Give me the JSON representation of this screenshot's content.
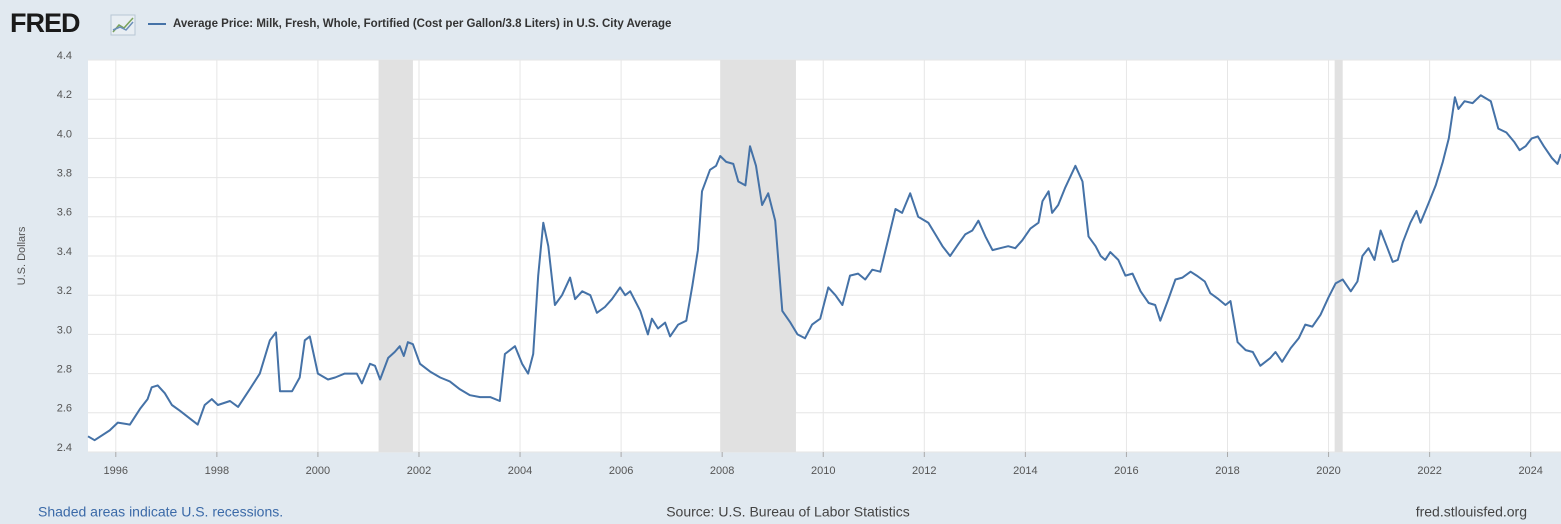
{
  "chart_data": {
    "type": "line",
    "logo": "FRED",
    "ylabel": "U.S. Dollars",
    "recession_note": "Shaded areas indicate U.S. recessions.",
    "source": "Source: U.S. Bureau of Labor Statistics",
    "site": "fred.stlouisfed.org",
    "xlim": [
      1995.45,
      2024.6
    ],
    "xticks": [
      1996,
      1998,
      2000,
      2002,
      2004,
      2006,
      2008,
      2010,
      2012,
      2014,
      2016,
      2018,
      2020,
      2022,
      2024
    ],
    "ylim": [
      2.4,
      4.4
    ],
    "yticks": [
      2.4,
      2.6,
      2.8,
      {
        "value": 3,
        "label": "3.0"
      },
      3.2,
      3.4,
      3.6,
      3.8,
      {
        "value": 4,
        "label": "4.0"
      },
      4.2,
      4.4
    ],
    "grid": true,
    "recessions": [
      [
        2001.2,
        2001.88
      ],
      [
        2007.96,
        2009.46
      ],
      [
        2020.12,
        2020.28
      ]
    ],
    "recession_color": "#e1e1e1",
    "x": [
      1995.45,
      1995.58,
      1995.88,
      1996.04,
      1996.28,
      1996.48,
      1996.63,
      1996.71,
      1996.83,
      1996.97,
      1997.11,
      1997.27,
      1997.47,
      1997.62,
      1997.76,
      1997.9,
      1998.02,
      1998.26,
      1998.42,
      1998.65,
      1998.85,
      1999.05,
      1999.17,
      1999.25,
      1999.49,
      1999.64,
      1999.74,
      1999.84,
      2000.0,
      2000.2,
      2000.34,
      2000.53,
      2000.77,
      2000.87,
      2001.03,
      2001.13,
      2001.23,
      2001.39,
      2001.52,
      2001.62,
      2001.7,
      2001.78,
      2001.88,
      2002.02,
      2002.22,
      2002.42,
      2002.61,
      2002.81,
      2003.01,
      2003.21,
      2003.41,
      2003.6,
      2003.7,
      2003.9,
      2004.04,
      2004.16,
      2004.26,
      2004.36,
      2004.46,
      2004.56,
      2004.69,
      2004.83,
      2004.99,
      2005.09,
      2005.23,
      2005.39,
      2005.52,
      2005.68,
      2005.82,
      2005.98,
      2006.08,
      2006.18,
      2006.38,
      2006.53,
      2006.61,
      2006.73,
      2006.87,
      2006.97,
      2007.13,
      2007.29,
      2007.41,
      2007.52,
      2007.6,
      2007.76,
      2007.88,
      2007.96,
      2008.08,
      2008.22,
      2008.32,
      2008.46,
      2008.55,
      2008.67,
      2008.79,
      2008.91,
      2009.05,
      2009.19,
      2009.35,
      2009.49,
      2009.64,
      2009.78,
      2009.94,
      2010.1,
      2010.24,
      2010.38,
      2010.53,
      2010.69,
      2010.83,
      2010.97,
      2011.13,
      2011.29,
      2011.43,
      2011.56,
      2011.72,
      2011.88,
      2012.08,
      2012.22,
      2012.36,
      2012.51,
      2012.67,
      2012.81,
      2012.95,
      2013.07,
      2013.21,
      2013.35,
      2013.5,
      2013.66,
      2013.8,
      2013.94,
      2014.1,
      2014.26,
      2014.34,
      2014.46,
      2014.53,
      2014.65,
      2014.79,
      2014.99,
      2015.13,
      2015.25,
      2015.39,
      2015.49,
      2015.58,
      2015.68,
      2015.84,
      2015.98,
      2016.12,
      2016.28,
      2016.44,
      2016.57,
      2016.67,
      2016.83,
      2016.97,
      2017.11,
      2017.27,
      2017.39,
      2017.55,
      2017.66,
      2017.82,
      2017.96,
      2018.06,
      2018.2,
      2018.36,
      2018.5,
      2018.65,
      2018.85,
      2018.95,
      2019.08,
      2019.25,
      2019.41,
      2019.54,
      2019.68,
      2019.84,
      2020.0,
      2020.14,
      2020.28,
      2020.44,
      2020.57,
      2020.67,
      2020.79,
      2020.91,
      2021.03,
      2021.15,
      2021.27,
      2021.37,
      2021.47,
      2021.62,
      2021.74,
      2021.82,
      2021.98,
      2022.12,
      2022.26,
      2022.38,
      2022.5,
      2022.57,
      2022.69,
      2022.85,
      2023.01,
      2023.21,
      2023.36,
      2023.52,
      2023.68,
      2023.78,
      2023.9,
      2024.02,
      2024.14,
      2024.26,
      2024.42,
      2024.53,
      2024.6
    ],
    "series": [
      {
        "name": "Average Price: Milk, Fresh, Whole, Fortified (Cost per Gallon/3.8 Liters) in U.S. City Average",
        "color": "#4572a7",
        "values": [
          2.48,
          2.46,
          2.51,
          2.55,
          2.54,
          2.62,
          2.67,
          2.73,
          2.74,
          2.7,
          2.64,
          2.61,
          2.57,
          2.54,
          2.64,
          2.67,
          2.64,
          2.66,
          2.63,
          2.72,
          2.8,
          2.97,
          3.01,
          2.71,
          2.71,
          2.78,
          2.97,
          2.99,
          2.8,
          2.77,
          2.78,
          2.8,
          2.8,
          2.75,
          2.85,
          2.84,
          2.77,
          2.88,
          2.91,
          2.94,
          2.89,
          2.96,
          2.95,
          2.85,
          2.81,
          2.78,
          2.76,
          2.72,
          2.69,
          2.68,
          2.68,
          2.66,
          2.9,
          2.94,
          2.85,
          2.8,
          2.9,
          3.3,
          3.57,
          3.45,
          3.15,
          3.2,
          3.29,
          3.18,
          3.22,
          3.2,
          3.11,
          3.14,
          3.18,
          3.24,
          3.2,
          3.22,
          3.12,
          3.0,
          3.08,
          3.03,
          3.06,
          2.99,
          3.05,
          3.07,
          3.25,
          3.43,
          3.73,
          3.84,
          3.86,
          3.91,
          3.88,
          3.87,
          3.78,
          3.76,
          3.96,
          3.86,
          3.66,
          3.72,
          3.58,
          3.12,
          3.06,
          3.0,
          2.98,
          3.05,
          3.08,
          3.24,
          3.2,
          3.15,
          3.3,
          3.31,
          3.28,
          3.33,
          3.32,
          3.49,
          3.64,
          3.62,
          3.72,
          3.6,
          3.57,
          3.51,
          3.45,
          3.4,
          3.46,
          3.51,
          3.53,
          3.58,
          3.5,
          3.43,
          3.44,
          3.45,
          3.44,
          3.48,
          3.54,
          3.57,
          3.68,
          3.73,
          3.62,
          3.66,
          3.75,
          3.86,
          3.78,
          3.5,
          3.45,
          3.4,
          3.38,
          3.42,
          3.38,
          3.3,
          3.31,
          3.22,
          3.16,
          3.15,
          3.07,
          3.18,
          3.28,
          3.29,
          3.32,
          3.3,
          3.27,
          3.21,
          3.18,
          3.15,
          3.17,
          2.96,
          2.92,
          2.91,
          2.84,
          2.88,
          2.91,
          2.86,
          2.93,
          2.98,
          3.05,
          3.04,
          3.1,
          3.19,
          3.26,
          3.28,
          3.22,
          3.27,
          3.4,
          3.44,
          3.38,
          3.53,
          3.45,
          3.37,
          3.38,
          3.47,
          3.57,
          3.63,
          3.57,
          3.67,
          3.76,
          3.88,
          4.0,
          4.21,
          4.15,
          4.19,
          4.18,
          4.22,
          4.19,
          4.05,
          4.03,
          3.98,
          3.94,
          3.96,
          4.0,
          4.01,
          3.96,
          3.9,
          3.87,
          3.92
        ]
      }
    ]
  }
}
